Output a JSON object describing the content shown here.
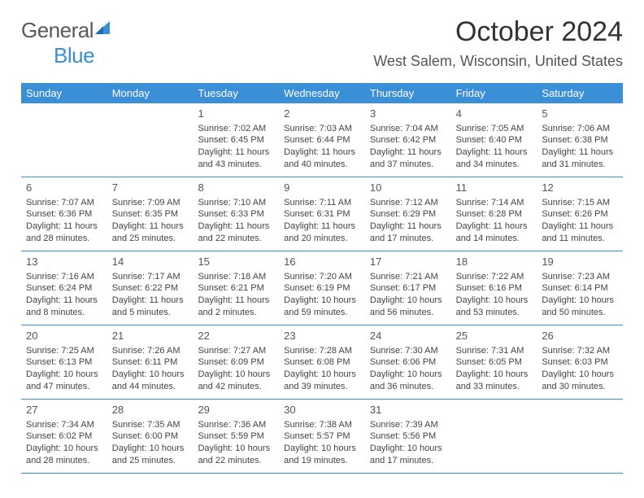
{
  "logo": {
    "word1": "General",
    "word2": "Blue"
  },
  "header": {
    "month_title": "October 2024",
    "location": "West Salem, Wisconsin, United States"
  },
  "colors": {
    "header_bar": "#3b8fd6",
    "row_divider": "#3b8fd6",
    "text": "#444444",
    "title": "#333333",
    "logo_gray": "#5a5a5a",
    "logo_blue": "#3b8fd6",
    "background": "#ffffff"
  },
  "fonts": {
    "month_title_size": 34,
    "location_size": 18,
    "weekday_size": 13,
    "daynum_size": 13,
    "body_size": 11
  },
  "weekdays": [
    "Sunday",
    "Monday",
    "Tuesday",
    "Wednesday",
    "Thursday",
    "Friday",
    "Saturday"
  ],
  "weeks": [
    [
      {
        "day": "",
        "sunrise": "",
        "sunset": "",
        "daylight": ""
      },
      {
        "day": "",
        "sunrise": "",
        "sunset": "",
        "daylight": ""
      },
      {
        "day": "1",
        "sunrise": "Sunrise: 7:02 AM",
        "sunset": "Sunset: 6:45 PM",
        "daylight": "Daylight: 11 hours and 43 minutes."
      },
      {
        "day": "2",
        "sunrise": "Sunrise: 7:03 AM",
        "sunset": "Sunset: 6:44 PM",
        "daylight": "Daylight: 11 hours and 40 minutes."
      },
      {
        "day": "3",
        "sunrise": "Sunrise: 7:04 AM",
        "sunset": "Sunset: 6:42 PM",
        "daylight": "Daylight: 11 hours and 37 minutes."
      },
      {
        "day": "4",
        "sunrise": "Sunrise: 7:05 AM",
        "sunset": "Sunset: 6:40 PM",
        "daylight": "Daylight: 11 hours and 34 minutes."
      },
      {
        "day": "5",
        "sunrise": "Sunrise: 7:06 AM",
        "sunset": "Sunset: 6:38 PM",
        "daylight": "Daylight: 11 hours and 31 minutes."
      }
    ],
    [
      {
        "day": "6",
        "sunrise": "Sunrise: 7:07 AM",
        "sunset": "Sunset: 6:36 PM",
        "daylight": "Daylight: 11 hours and 28 minutes."
      },
      {
        "day": "7",
        "sunrise": "Sunrise: 7:09 AM",
        "sunset": "Sunset: 6:35 PM",
        "daylight": "Daylight: 11 hours and 25 minutes."
      },
      {
        "day": "8",
        "sunrise": "Sunrise: 7:10 AM",
        "sunset": "Sunset: 6:33 PM",
        "daylight": "Daylight: 11 hours and 22 minutes."
      },
      {
        "day": "9",
        "sunrise": "Sunrise: 7:11 AM",
        "sunset": "Sunset: 6:31 PM",
        "daylight": "Daylight: 11 hours and 20 minutes."
      },
      {
        "day": "10",
        "sunrise": "Sunrise: 7:12 AM",
        "sunset": "Sunset: 6:29 PM",
        "daylight": "Daylight: 11 hours and 17 minutes."
      },
      {
        "day": "11",
        "sunrise": "Sunrise: 7:14 AM",
        "sunset": "Sunset: 6:28 PM",
        "daylight": "Daylight: 11 hours and 14 minutes."
      },
      {
        "day": "12",
        "sunrise": "Sunrise: 7:15 AM",
        "sunset": "Sunset: 6:26 PM",
        "daylight": "Daylight: 11 hours and 11 minutes."
      }
    ],
    [
      {
        "day": "13",
        "sunrise": "Sunrise: 7:16 AM",
        "sunset": "Sunset: 6:24 PM",
        "daylight": "Daylight: 11 hours and 8 minutes."
      },
      {
        "day": "14",
        "sunrise": "Sunrise: 7:17 AM",
        "sunset": "Sunset: 6:22 PM",
        "daylight": "Daylight: 11 hours and 5 minutes."
      },
      {
        "day": "15",
        "sunrise": "Sunrise: 7:18 AM",
        "sunset": "Sunset: 6:21 PM",
        "daylight": "Daylight: 11 hours and 2 minutes."
      },
      {
        "day": "16",
        "sunrise": "Sunrise: 7:20 AM",
        "sunset": "Sunset: 6:19 PM",
        "daylight": "Daylight: 10 hours and 59 minutes."
      },
      {
        "day": "17",
        "sunrise": "Sunrise: 7:21 AM",
        "sunset": "Sunset: 6:17 PM",
        "daylight": "Daylight: 10 hours and 56 minutes."
      },
      {
        "day": "18",
        "sunrise": "Sunrise: 7:22 AM",
        "sunset": "Sunset: 6:16 PM",
        "daylight": "Daylight: 10 hours and 53 minutes."
      },
      {
        "day": "19",
        "sunrise": "Sunrise: 7:23 AM",
        "sunset": "Sunset: 6:14 PM",
        "daylight": "Daylight: 10 hours and 50 minutes."
      }
    ],
    [
      {
        "day": "20",
        "sunrise": "Sunrise: 7:25 AM",
        "sunset": "Sunset: 6:13 PM",
        "daylight": "Daylight: 10 hours and 47 minutes."
      },
      {
        "day": "21",
        "sunrise": "Sunrise: 7:26 AM",
        "sunset": "Sunset: 6:11 PM",
        "daylight": "Daylight: 10 hours and 44 minutes."
      },
      {
        "day": "22",
        "sunrise": "Sunrise: 7:27 AM",
        "sunset": "Sunset: 6:09 PM",
        "daylight": "Daylight: 10 hours and 42 minutes."
      },
      {
        "day": "23",
        "sunrise": "Sunrise: 7:28 AM",
        "sunset": "Sunset: 6:08 PM",
        "daylight": "Daylight: 10 hours and 39 minutes."
      },
      {
        "day": "24",
        "sunrise": "Sunrise: 7:30 AM",
        "sunset": "Sunset: 6:06 PM",
        "daylight": "Daylight: 10 hours and 36 minutes."
      },
      {
        "day": "25",
        "sunrise": "Sunrise: 7:31 AM",
        "sunset": "Sunset: 6:05 PM",
        "daylight": "Daylight: 10 hours and 33 minutes."
      },
      {
        "day": "26",
        "sunrise": "Sunrise: 7:32 AM",
        "sunset": "Sunset: 6:03 PM",
        "daylight": "Daylight: 10 hours and 30 minutes."
      }
    ],
    [
      {
        "day": "27",
        "sunrise": "Sunrise: 7:34 AM",
        "sunset": "Sunset: 6:02 PM",
        "daylight": "Daylight: 10 hours and 28 minutes."
      },
      {
        "day": "28",
        "sunrise": "Sunrise: 7:35 AM",
        "sunset": "Sunset: 6:00 PM",
        "daylight": "Daylight: 10 hours and 25 minutes."
      },
      {
        "day": "29",
        "sunrise": "Sunrise: 7:36 AM",
        "sunset": "Sunset: 5:59 PM",
        "daylight": "Daylight: 10 hours and 22 minutes."
      },
      {
        "day": "30",
        "sunrise": "Sunrise: 7:38 AM",
        "sunset": "Sunset: 5:57 PM",
        "daylight": "Daylight: 10 hours and 19 minutes."
      },
      {
        "day": "31",
        "sunrise": "Sunrise: 7:39 AM",
        "sunset": "Sunset: 5:56 PM",
        "daylight": "Daylight: 10 hours and 17 minutes."
      },
      {
        "day": "",
        "sunrise": "",
        "sunset": "",
        "daylight": ""
      },
      {
        "day": "",
        "sunrise": "",
        "sunset": "",
        "daylight": ""
      }
    ]
  ]
}
